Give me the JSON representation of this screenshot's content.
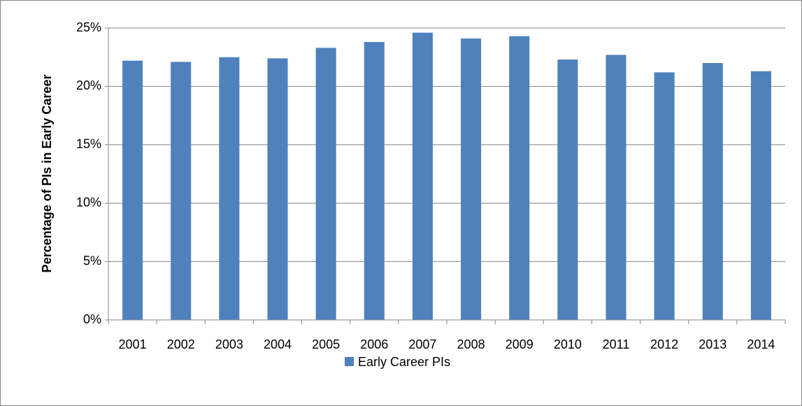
{
  "chart_data": {
    "type": "bar",
    "y_label": "Percentage of PIs in Early Career",
    "categories": [
      "2001",
      "2002",
      "2003",
      "2004",
      "2005",
      "2006",
      "2007",
      "2008",
      "2009",
      "2010",
      "2011",
      "2012",
      "2013",
      "2014"
    ],
    "series": [
      {
        "name": "Early Career PIs",
        "color": "#4f81bd",
        "values": [
          22.2,
          22.1,
          22.5,
          22.4,
          23.3,
          23.8,
          24.6,
          24.1,
          24.3,
          22.3,
          22.7,
          21.2,
          22.0,
          21.3
        ]
      }
    ],
    "ylim": [
      0,
      25
    ],
    "yticks": [
      {
        "value": 0,
        "label": "0%"
      },
      {
        "value": 5,
        "label": "5%"
      },
      {
        "value": 10,
        "label": "10%"
      },
      {
        "value": 15,
        "label": "15%"
      },
      {
        "value": 20,
        "label": "20%"
      },
      {
        "value": 25,
        "label": "25%"
      }
    ],
    "grid": true,
    "legend": "bottom"
  }
}
